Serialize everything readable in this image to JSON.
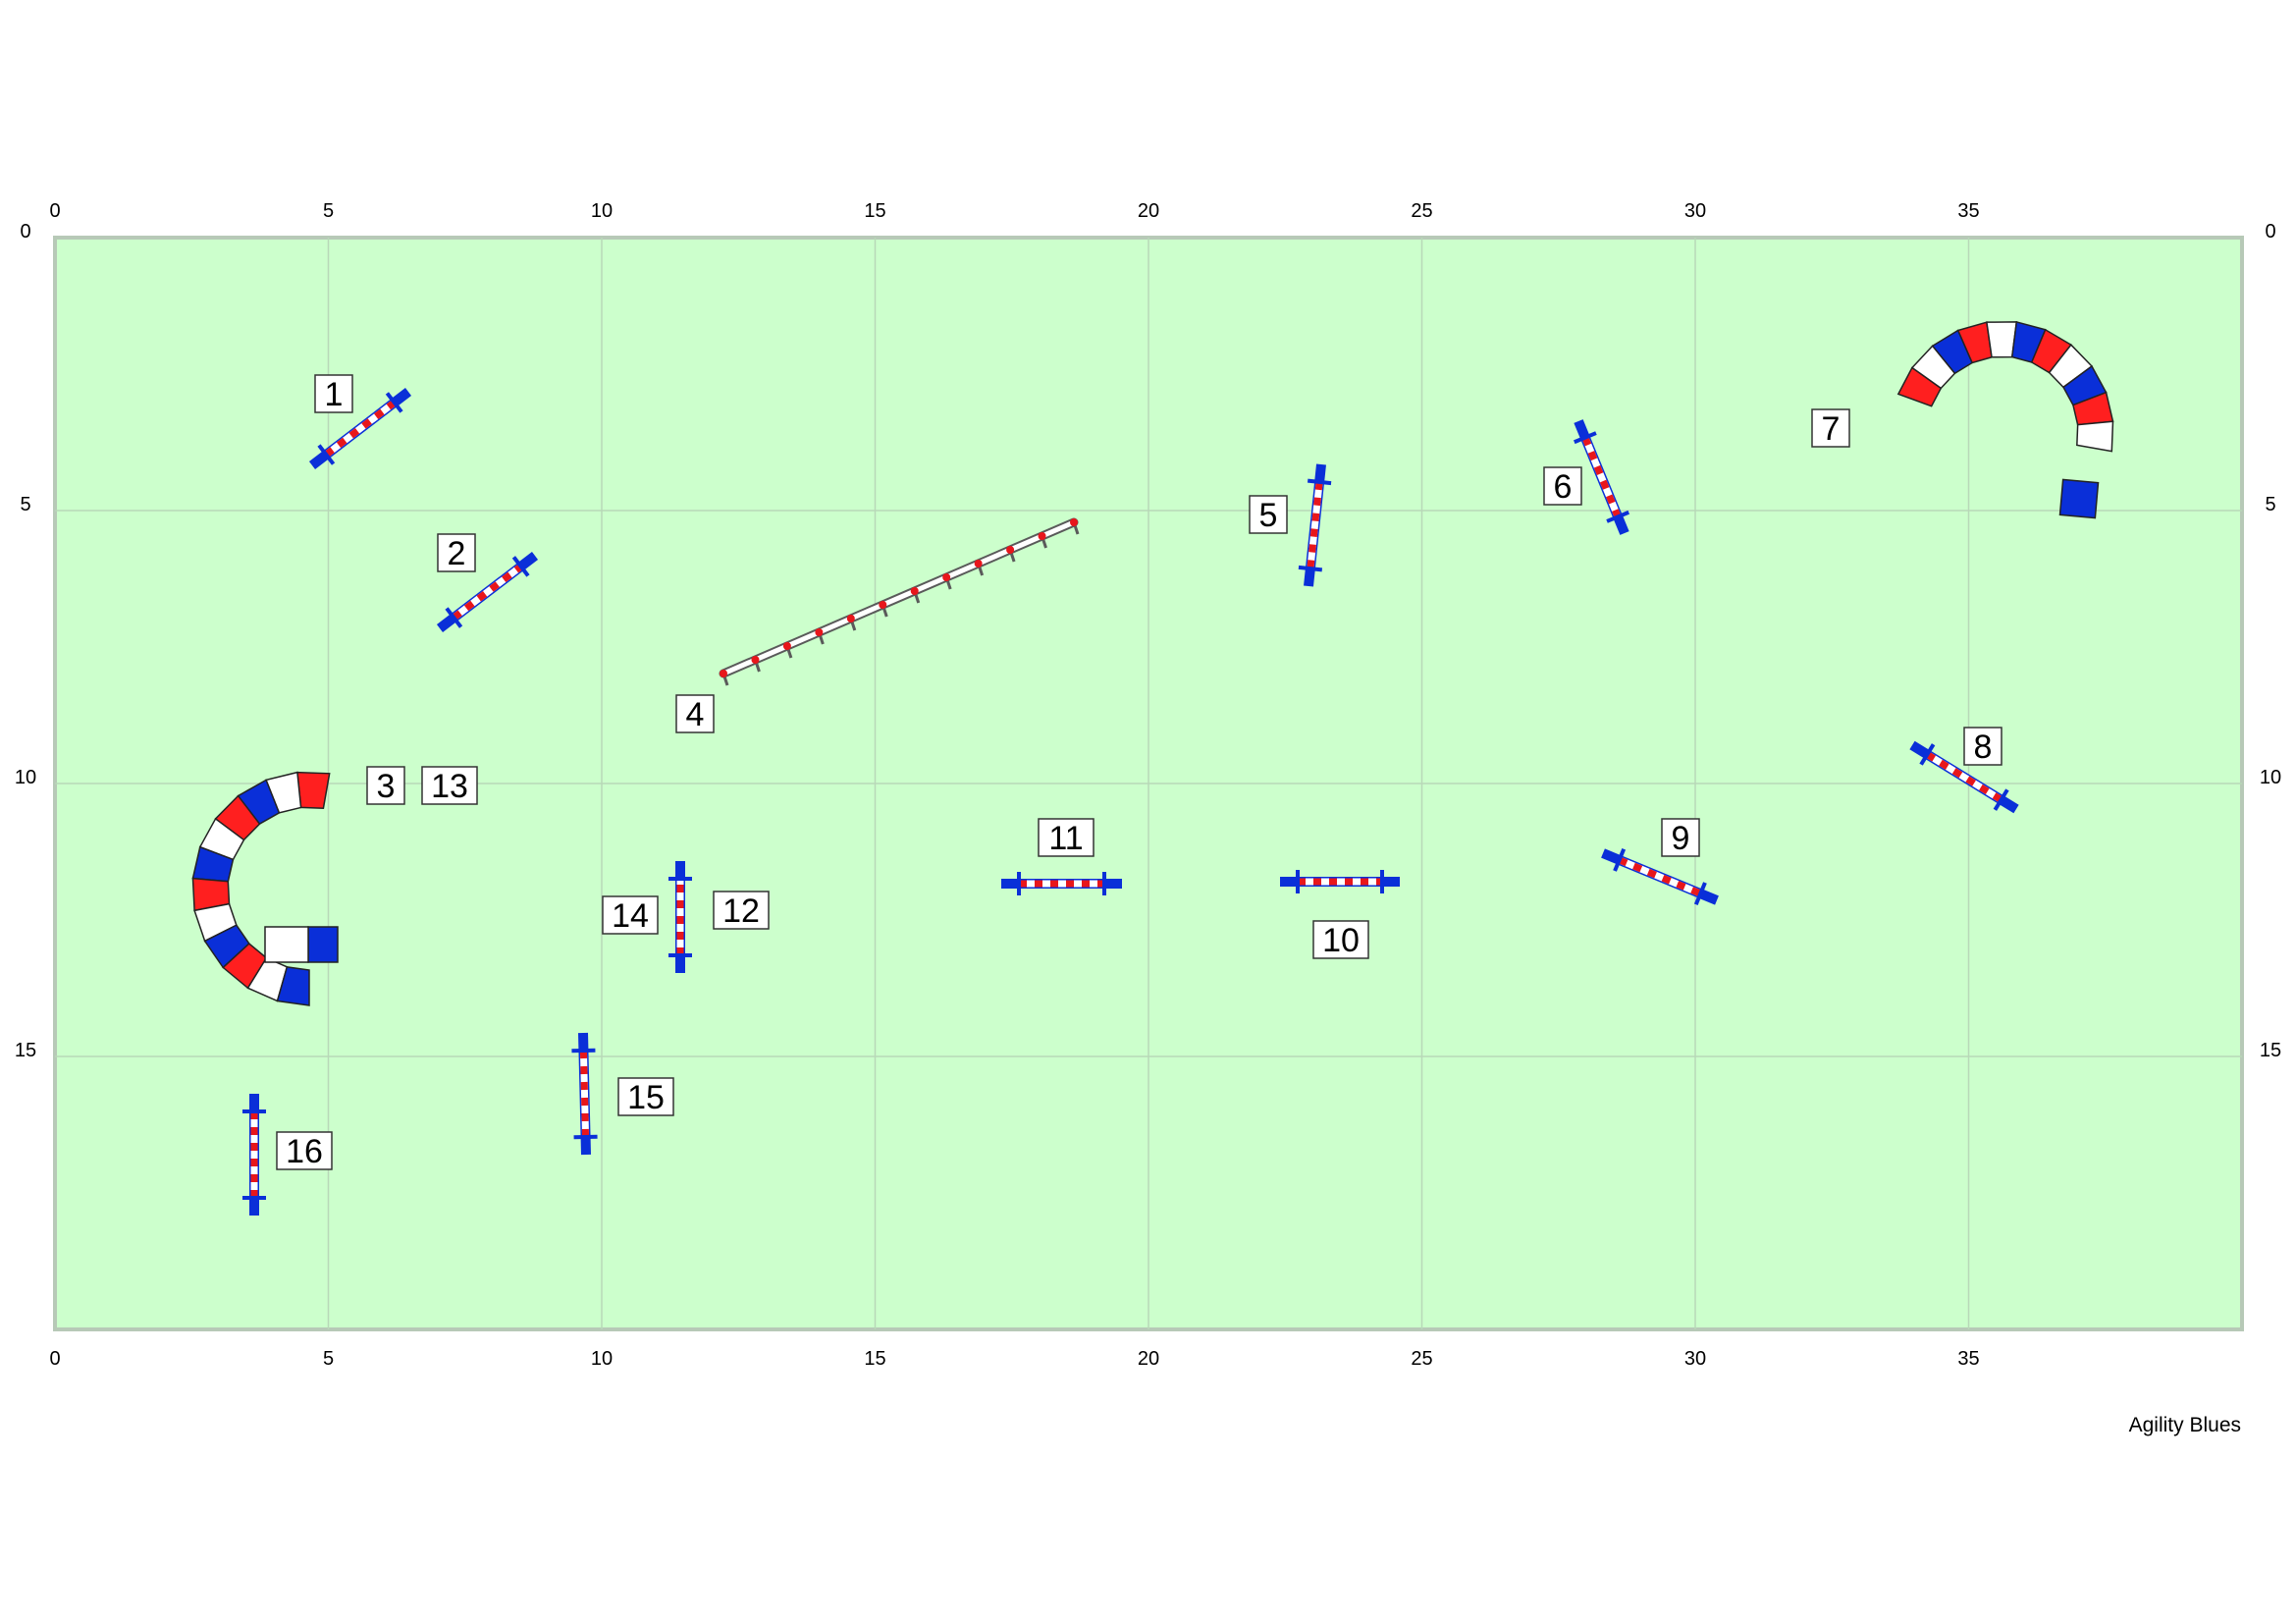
{
  "course": {
    "credit": "Agility Blues",
    "colors": {
      "field": "#ccffcc",
      "border": "#b7c9b7",
      "grid": "#b8d8b8",
      "pole_red": "#e8161b",
      "pole_white": "#ffffff",
      "wing_blue": "#0a2fd8",
      "tunnel_red": "#ff1f1f",
      "tunnel_blue": "#0a2fd8"
    },
    "top_ticks": [
      "0",
      "5",
      "10",
      "15",
      "20",
      "25",
      "30",
      "35"
    ],
    "bottom_ticks": [
      "0",
      "5",
      "10",
      "15",
      "20",
      "25",
      "30",
      "35"
    ],
    "left_ticks": [
      "0",
      "5",
      "10",
      "15"
    ],
    "right_ticks": [
      "0",
      "5",
      "10",
      "15"
    ],
    "labels": [
      "1",
      "2",
      "3",
      "13",
      "4",
      "5",
      "6",
      "7",
      "8",
      "9",
      "10",
      "11",
      "12",
      "14",
      "15",
      "16"
    ]
  }
}
